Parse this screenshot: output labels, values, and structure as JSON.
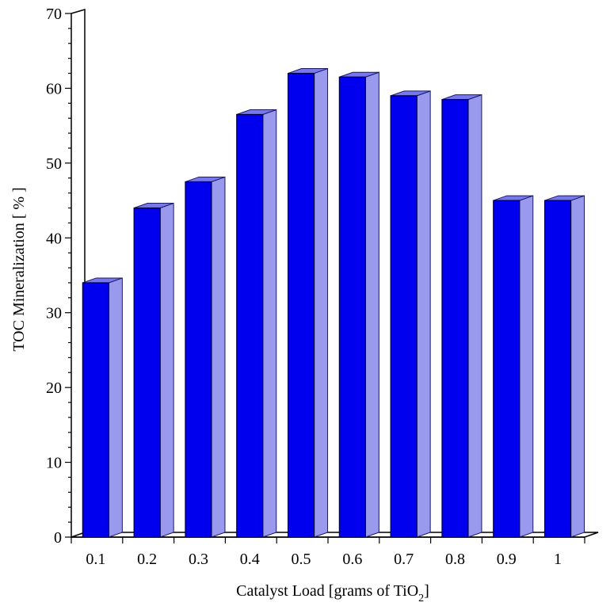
{
  "chart_data": {
    "type": "bar",
    "title": "",
    "categories": [
      "0.1",
      "0.2",
      "0.3",
      "0.4",
      "0.5",
      "0.6",
      "0.7",
      "0.8",
      "0.9",
      "1"
    ],
    "series": [
      {
        "name": "TOC Mineralization",
        "values": [
          34,
          44,
          47.5,
          56.5,
          62,
          61.5,
          59,
          58.5,
          45,
          45
        ]
      }
    ],
    "xlabel": "Catalyst Load [grams of TiO",
    "xlabel_subscript": "2",
    "xlabel_suffix": "]",
    "ylabel": "TOC Mineralization [ % ]",
    "ylim": [
      0,
      70
    ],
    "yticks": [
      "0",
      "10",
      "20",
      "30",
      "40",
      "50",
      "60",
      "70"
    ],
    "bar_style": "3d",
    "grid": false
  },
  "colors": {
    "bar_front": "#0000ee",
    "bar_side": "#9999ee",
    "bar_top": "#7777ee",
    "axis": "#000000"
  }
}
